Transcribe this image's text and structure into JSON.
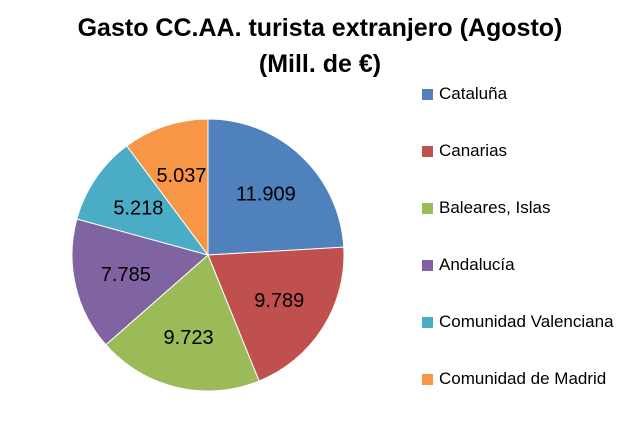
{
  "chart_data": {
    "type": "pie",
    "title_line1": "Gasto CC.AA. turista extranjero (Agosto)",
    "title_line2": "(Mill. de €)",
    "slices": [
      {
        "label": "Cataluña",
        "value": 11.909,
        "display": "11.909",
        "color": "#4f81bd"
      },
      {
        "label": "Canarias",
        "value": 9.789,
        "display": "9.789",
        "color": "#c0504d"
      },
      {
        "label": "Baleares, Islas",
        "value": 9.723,
        "display": "9.723",
        "color": "#9bbb59"
      },
      {
        "label": "Andalucía",
        "value": 7.785,
        "display": "7.785",
        "color": "#8064a2"
      },
      {
        "label": "Comunidad Valenciana",
        "value": 5.218,
        "display": "5.218",
        "color": "#4bacc6"
      },
      {
        "label": "Comunidad de Madrid",
        "value": 5.037,
        "display": "5.037",
        "color": "#f79646"
      }
    ],
    "legend_position": "right"
  }
}
